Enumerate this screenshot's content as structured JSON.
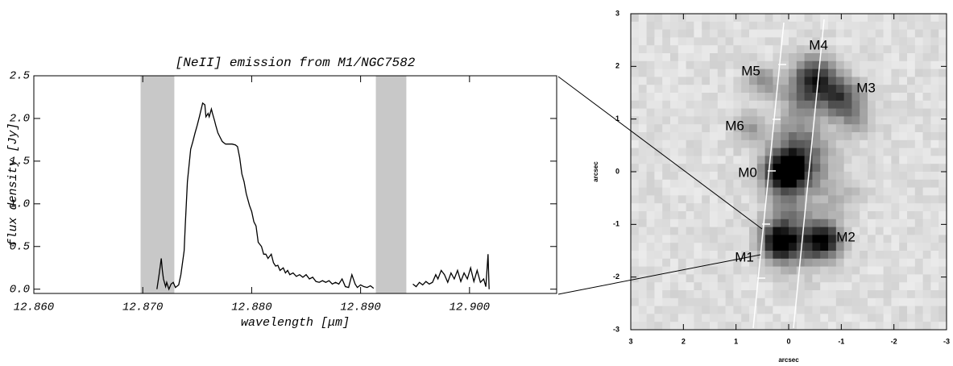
{
  "chart_data": [
    {
      "type": "line",
      "title": "[NeII] emission from M1/NGC7582",
      "xlabel": "wavelength [μm]",
      "ylabel": "flux density [Jy]",
      "xlim": [
        12.86,
        12.908
      ],
      "ylim": [
        -0.05,
        2.5
      ],
      "xticks": [
        {
          "value": 12.86,
          "label": "12.860"
        },
        {
          "value": 12.87,
          "label": "12.870"
        },
        {
          "value": 12.88,
          "label": "12.880"
        },
        {
          "value": 12.89,
          "label": "12.890"
        },
        {
          "value": 12.9,
          "label": "12.900"
        }
      ],
      "yticks": [
        {
          "value": 0,
          "label": "0.0"
        },
        0.5,
        {
          "value": 1,
          "label": "1.0"
        },
        1.5,
        {
          "value": 2,
          "label": "2.0"
        },
        2.5
      ],
      "color": "#000000",
      "shade_color": "#c8c8c8",
      "shaded_regions": [
        [
          12.8698,
          12.8729
        ],
        [
          12.8914,
          12.8942
        ]
      ],
      "x": [
        12.8713,
        12.8715,
        12.8717,
        12.8718,
        12.8719,
        12.8721,
        12.8722,
        12.8724,
        12.8726,
        12.8728,
        12.873,
        12.8733,
        12.8735,
        12.8738,
        12.8739,
        12.8741,
        12.8744,
        12.8746,
        12.8748,
        12.875,
        12.8752,
        12.8755,
        12.8757,
        12.8758,
        12.876,
        12.8761,
        12.8763,
        12.8764,
        12.8766,
        12.8767,
        12.8769,
        12.8771,
        12.8773,
        12.8776,
        12.8779,
        12.8782,
        12.8785,
        12.8787,
        12.8789,
        12.8791,
        12.8793,
        12.8795,
        12.8798,
        12.88,
        12.8802,
        12.8804,
        12.8806,
        12.8809,
        12.8811,
        12.8813,
        12.8815,
        12.8818,
        12.882,
        12.8822,
        12.8824,
        12.8826,
        12.8829,
        12.8831,
        12.8833,
        12.8835,
        12.8838,
        12.8841,
        12.8844,
        12.8847,
        12.885,
        12.8853,
        12.8856,
        12.8859,
        12.8862,
        12.8865,
        12.8868,
        12.8871,
        12.8874,
        12.8877,
        12.888,
        12.8883,
        12.8886,
        12.8889,
        12.8892,
        12.8895,
        12.8897,
        12.89,
        12.8903,
        12.8906,
        12.8909,
        12.8912,
        null,
        12.8948,
        12.8951,
        12.8954,
        12.8957,
        12.896,
        12.8963,
        12.8966,
        12.8969,
        12.8971,
        12.8974,
        12.8977,
        12.898,
        12.8983,
        12.8986,
        12.8989,
        12.8992,
        12.8995,
        12.8998,
        12.9001,
        12.9004,
        12.9007,
        12.901,
        12.9013,
        12.9015,
        12.9017,
        12.9018
      ],
      "values": [
        0.0,
        0.17,
        0.36,
        0.22,
        0.12,
        0.03,
        0.08,
        0.0,
        0.06,
        0.08,
        0.02,
        0.05,
        0.17,
        0.45,
        0.74,
        1.26,
        1.64,
        1.73,
        1.83,
        1.92,
        2.02,
        2.18,
        2.16,
        2.02,
        2.06,
        2.02,
        2.11,
        2.06,
        1.97,
        1.92,
        1.83,
        1.78,
        1.73,
        1.7,
        1.7,
        1.7,
        1.69,
        1.67,
        1.54,
        1.35,
        1.26,
        1.12,
        0.98,
        0.91,
        0.79,
        0.74,
        0.55,
        0.5,
        0.41,
        0.41,
        0.36,
        0.41,
        0.31,
        0.27,
        0.28,
        0.22,
        0.25,
        0.19,
        0.22,
        0.17,
        0.19,
        0.15,
        0.17,
        0.14,
        0.17,
        0.12,
        0.14,
        0.09,
        0.08,
        0.1,
        0.08,
        0.1,
        0.06,
        0.08,
        0.06,
        0.12,
        0.03,
        0.02,
        0.17,
        0.06,
        0.02,
        0.05,
        0.03,
        0.02,
        0.04,
        0.01,
        null,
        0.06,
        0.03,
        0.08,
        0.05,
        0.09,
        0.06,
        0.08,
        0.17,
        0.12,
        0.22,
        0.17,
        0.08,
        0.19,
        0.12,
        0.22,
        0.09,
        0.19,
        0.12,
        0.25,
        0.09,
        0.22,
        0.08,
        0.12,
        0.03,
        0.41,
        0.0
      ]
    },
    {
      "type": "image",
      "xlabel": "arcsec",
      "ylabel": "arcsec",
      "xlim": [
        3,
        -3
      ],
      "ylim": [
        -3,
        3
      ],
      "xticks": [
        3,
        2,
        1,
        0,
        -1,
        -2,
        -3
      ],
      "yticks": [
        -3,
        -2,
        -1,
        0,
        1,
        2,
        3
      ],
      "colormap": "gray",
      "annotations": [
        "M0",
        "M1",
        "M2",
        "M3",
        "M4",
        "M5",
        "M6"
      ]
    }
  ]
}
